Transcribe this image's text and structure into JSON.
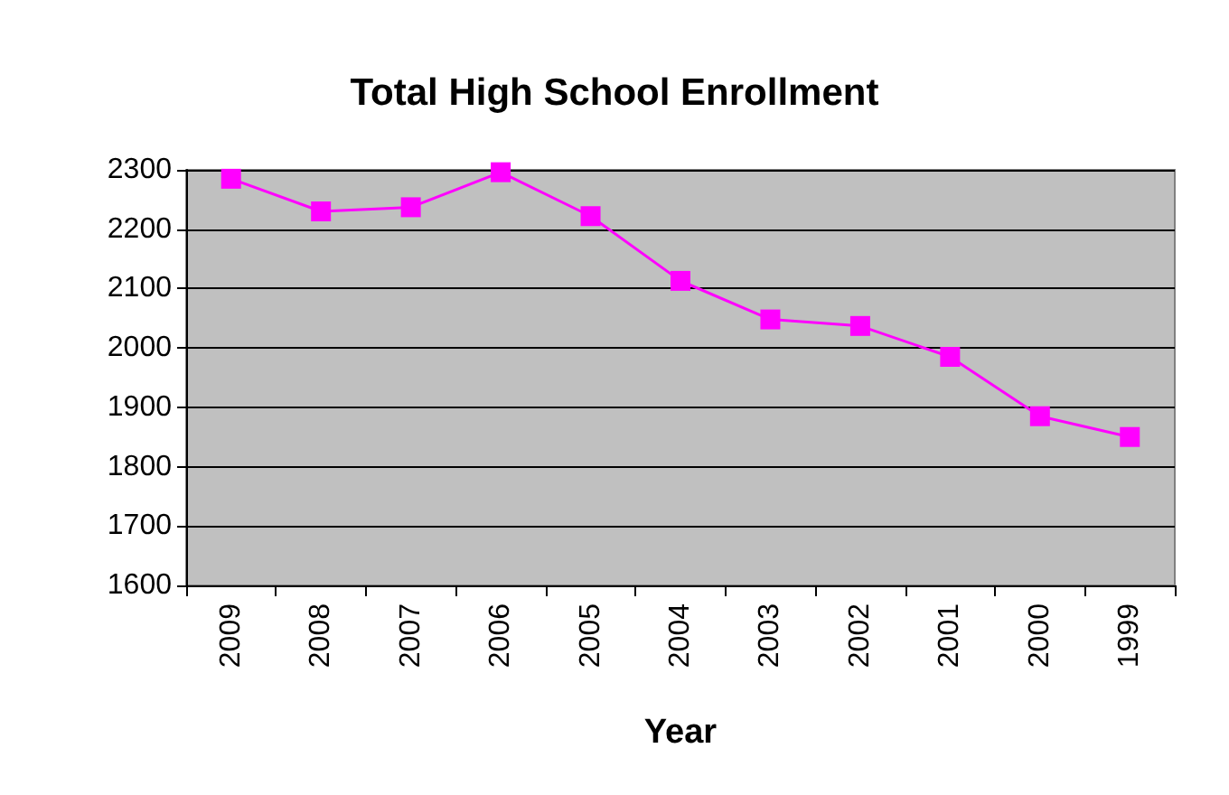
{
  "chart_data": {
    "type": "line",
    "title": "Total High School Enrollment",
    "xlabel": "Year",
    "categories": [
      "2009",
      "2008",
      "2007",
      "2006",
      "2005",
      "2004",
      "2003",
      "2002",
      "2001",
      "2000",
      "1999"
    ],
    "series": [
      {
        "color": "#ff00ff",
        "values": [
          2285,
          2230,
          2237,
          2296,
          2222,
          2113,
          2048,
          2037,
          1985,
          1885,
          1850
        ]
      }
    ],
    "ylim": [
      1600,
      2300
    ],
    "yticks": [
      1600,
      1700,
      1800,
      1900,
      2000,
      2100,
      2200,
      2300
    ],
    "grid": "y",
    "marker": "square",
    "line_style": "solid"
  }
}
